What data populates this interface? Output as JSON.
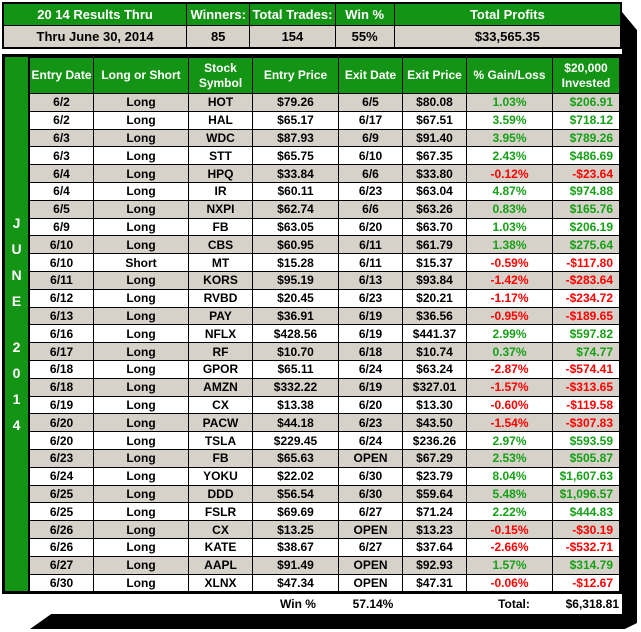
{
  "summary_table": {
    "headers": [
      "20 14 Results Thru",
      "Winners:",
      "Total Trades:",
      "Win %",
      "Total Profits"
    ],
    "values": [
      "Thru June 30, 2014",
      "85",
      "154",
      "55%",
      "$33,565.35"
    ]
  },
  "sidebar": {
    "letters": [
      "J",
      "U",
      "N",
      "E",
      "2",
      "0",
      "1",
      "4"
    ]
  },
  "main_table": {
    "columns": [
      "Entry Date",
      "Long or Short",
      "Stock Symbol",
      "Entry Price",
      "Exit Date",
      "Exit Price",
      "% Gain/Loss",
      "$20,000 Invested"
    ],
    "rows": [
      [
        "6/2",
        "Long",
        "HOT",
        "$79.26",
        "6/5",
        "$80.08",
        "1.03%",
        "$206.91"
      ],
      [
        "6/2",
        "Long",
        "HAL",
        "$65.17",
        "6/17",
        "$67.51",
        "3.59%",
        "$718.12"
      ],
      [
        "6/3",
        "Long",
        "WDC",
        "$87.93",
        "6/9",
        "$91.40",
        "3.95%",
        "$789.26"
      ],
      [
        "6/3",
        "Long",
        "STT",
        "$65.75",
        "6/10",
        "$67.35",
        "2.43%",
        "$486.69"
      ],
      [
        "6/4",
        "Long",
        "HPQ",
        "$33.84",
        "6/6",
        "$33.80",
        "-0.12%",
        "-$23.64"
      ],
      [
        "6/4",
        "Long",
        "IR",
        "$60.11",
        "6/23",
        "$63.04",
        "4.87%",
        "$974.88"
      ],
      [
        "6/5",
        "Long",
        "NXPI",
        "$62.74",
        "6/6",
        "$63.26",
        "0.83%",
        "$165.76"
      ],
      [
        "6/9",
        "Long",
        "FB",
        "$63.05",
        "6/20",
        "$63.70",
        "1.03%",
        "$206.19"
      ],
      [
        "6/10",
        "Long",
        "CBS",
        "$60.95",
        "6/11",
        "$61.79",
        "1.38%",
        "$275.64"
      ],
      [
        "6/10",
        "Short",
        "MT",
        "$15.28",
        "6/11",
        "$15.37",
        "-0.59%",
        "-$117.80"
      ],
      [
        "6/11",
        "Long",
        "KORS",
        "$95.19",
        "6/13",
        "$93.84",
        "-1.42%",
        "-$283.64"
      ],
      [
        "6/12",
        "Long",
        "RVBD",
        "$20.45",
        "6/23",
        "$20.21",
        "-1.17%",
        "-$234.72"
      ],
      [
        "6/13",
        "Long",
        "PAY",
        "$36.91",
        "6/19",
        "$36.56",
        "-0.95%",
        "-$189.65"
      ],
      [
        "6/16",
        "Long",
        "NFLX",
        "$428.56",
        "6/19",
        "$441.37",
        "2.99%",
        "$597.82"
      ],
      [
        "6/17",
        "Long",
        "RF",
        "$10.70",
        "6/18",
        "$10.74",
        "0.37%",
        "$74.77"
      ],
      [
        "6/18",
        "Long",
        "GPOR",
        "$65.11",
        "6/24",
        "$63.24",
        "-2.87%",
        "-$574.41"
      ],
      [
        "6/18",
        "Long",
        "AMZN",
        "$332.22",
        "6/19",
        "$327.01",
        "-1.57%",
        "-$313.65"
      ],
      [
        "6/19",
        "Long",
        "CX",
        "$13.38",
        "6/20",
        "$13.30",
        "-0.60%",
        "-$119.58"
      ],
      [
        "6/20",
        "Long",
        "PACW",
        "$44.18",
        "6/23",
        "$43.50",
        "-1.54%",
        "-$307.83"
      ],
      [
        "6/20",
        "Long",
        "TSLA",
        "$229.45",
        "6/24",
        "$236.26",
        "2.97%",
        "$593.59"
      ],
      [
        "6/23",
        "Long",
        "FB",
        "$65.63",
        "OPEN",
        "$67.29",
        "2.53%",
        "$505.87"
      ],
      [
        "6/24",
        "Long",
        "YOKU",
        "$22.02",
        "6/30",
        "$23.79",
        "8.04%",
        "$1,607.63"
      ],
      [
        "6/25",
        "Long",
        "DDD",
        "$56.54",
        "6/30",
        "$59.64",
        "5.48%",
        "$1,096.57"
      ],
      [
        "6/25",
        "Long",
        "FSLR",
        "$69.69",
        "6/27",
        "$71.24",
        "2.22%",
        "$444.83"
      ],
      [
        "6/26",
        "Long",
        "CX",
        "$13.25",
        "OPEN",
        "$13.23",
        "-0.15%",
        "-$30.19"
      ],
      [
        "6/26",
        "Long",
        "KATE",
        "$38.67",
        "6/27",
        "$37.64",
        "-2.66%",
        "-$532.71"
      ],
      [
        "6/27",
        "Long",
        "AAPL",
        "$91.49",
        "OPEN",
        "$92.93",
        "1.57%",
        "$314.79"
      ],
      [
        "6/30",
        "Long",
        "XLNX",
        "$47.34",
        "OPEN",
        "$47.31",
        "-0.06%",
        "-$12.67"
      ]
    ]
  },
  "footer": {
    "win_label": "Win %",
    "win_value": "57.14%",
    "total_label": "Total:",
    "total_value": "$6,318.81"
  },
  "colors": {
    "header_green": "#149414",
    "row_gray": "#D6D2C9",
    "positive": "#16A016",
    "negative": "#FF0000"
  }
}
